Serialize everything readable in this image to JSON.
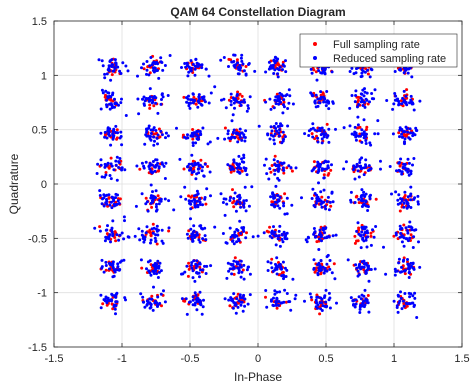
{
  "chart_data": {
    "type": "scatter",
    "title": "QAM 64 Constellation Diagram",
    "xlabel": "In-Phase",
    "ylabel": "Quadrature",
    "xlim": [
      -1.5,
      1.5
    ],
    "ylim": [
      -1.5,
      1.5
    ],
    "xticks": [
      -1.5,
      -1,
      -0.5,
      0,
      0.5,
      1,
      1.5
    ],
    "yticks": [
      -1.5,
      -1,
      -0.5,
      0,
      0.5,
      1,
      1.5
    ],
    "xtick_labels": [
      "-1.5",
      "-1",
      "-0.5",
      "0",
      "0.5",
      "1",
      "1.5"
    ],
    "ytick_labels": [
      "-1.5",
      "-1",
      "-0.5",
      "0",
      "0.5",
      "1",
      "1.5"
    ],
    "grid": true,
    "legend_location": "top-right",
    "constellation_levels": [
      -1.08,
      -0.77,
      -0.46,
      -0.15,
      0.15,
      0.46,
      0.77,
      1.08
    ],
    "series": [
      {
        "name": "Full sampling rate",
        "color": "#ff0000",
        "marker": "dot",
        "cluster_spread": 0.035,
        "points_per_cluster": 14
      },
      {
        "name": "Reduced sampling rate",
        "color": "#0000ff",
        "marker": "dot",
        "cluster_spread": 0.045,
        "points_per_cluster": 30
      }
    ]
  }
}
